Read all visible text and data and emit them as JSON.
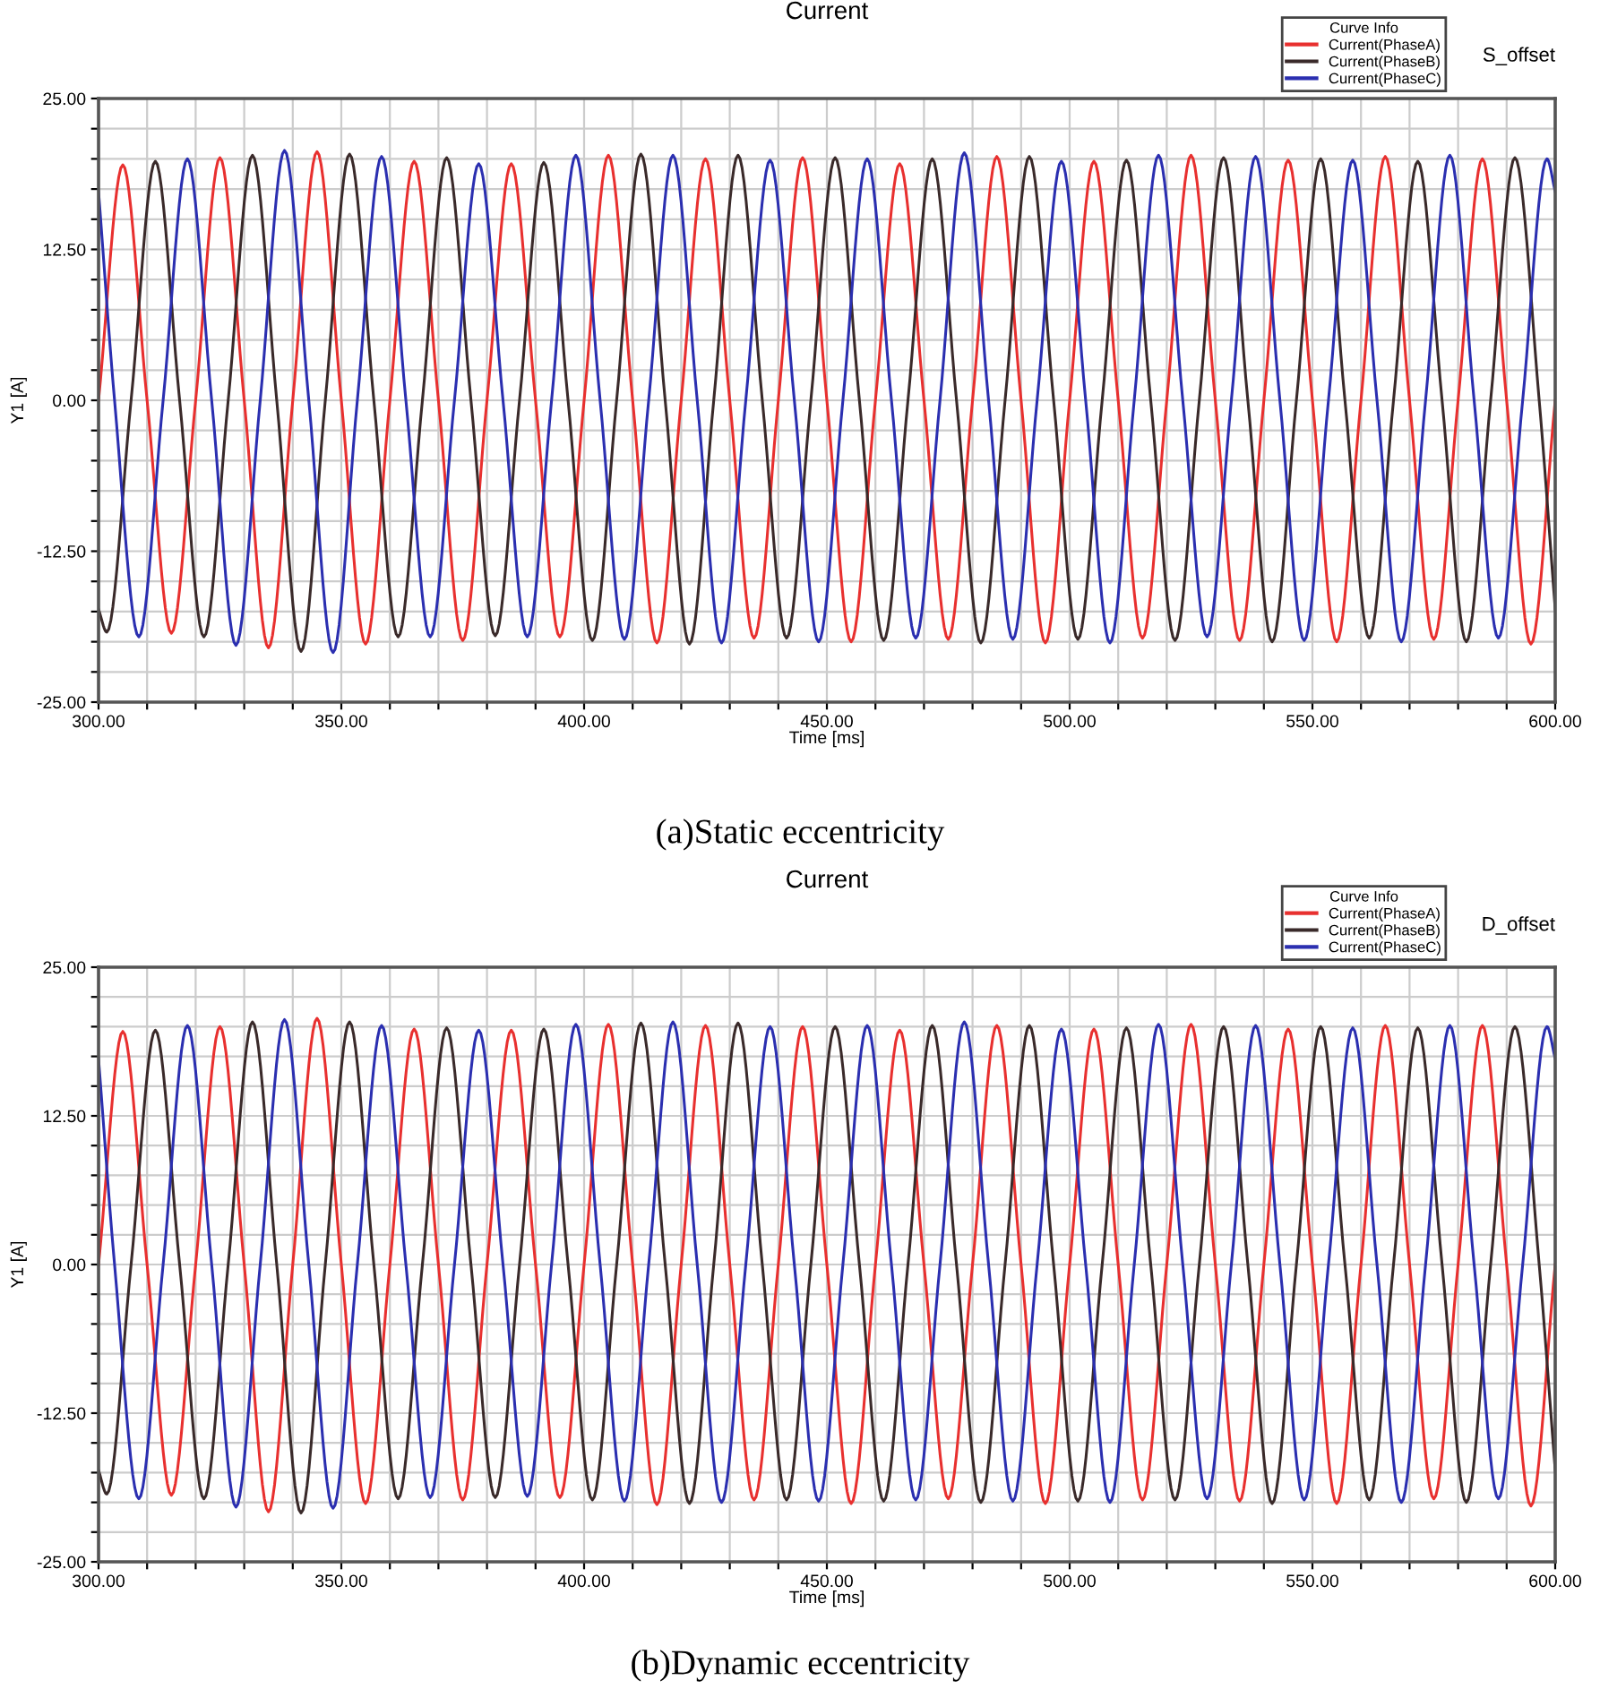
{
  "chart_data": [
    {
      "type": "line",
      "title": "Current",
      "xlabel": "Time [ms]",
      "ylabel": "Y1 [A]",
      "legend_title": "Curve Info",
      "annotations": [
        "S_offset",
        "(a)Static eccentricity"
      ],
      "series": [
        {
          "name": "Current(PhaseA)",
          "color": "#e8302f",
          "x": [
            300,
            305,
            310,
            315,
            320,
            325,
            330,
            335,
            340,
            345,
            350,
            355,
            360,
            365,
            370,
            375,
            380,
            385,
            390,
            395,
            400,
            405,
            410,
            415,
            420,
            425,
            430,
            435,
            440,
            445,
            450,
            455,
            460,
            465,
            470,
            475,
            480,
            485,
            490,
            495,
            500,
            505,
            510,
            515,
            520,
            525,
            530,
            535,
            540,
            545,
            550,
            555,
            560,
            565,
            570,
            575,
            580,
            585,
            590,
            595,
            600
          ],
          "values": [
            0,
            19.5,
            0,
            -19.3,
            0,
            20.1,
            0,
            -20.5,
            0,
            20.6,
            0,
            -20.2,
            0,
            19.8,
            0,
            -19.9,
            0,
            19.6,
            0,
            -19.6,
            0,
            20.3,
            0,
            -20.1,
            0,
            20.0,
            0,
            -19.7,
            0,
            20.1,
            0,
            -20.0,
            0,
            19.6,
            0,
            -19.8,
            0,
            20.2,
            0,
            -20.1,
            0,
            19.8,
            0,
            -19.7,
            0,
            20.3,
            0,
            -19.9,
            0,
            19.9,
            0,
            -20.0,
            0,
            20.2,
            0,
            -19.8,
            0,
            20.0,
            0,
            -20.2,
            0
          ]
        },
        {
          "name": "Current(PhaseB)",
          "color": "#3a2a2a",
          "x": [
            300,
            301.7,
            306.7,
            311.7,
            316.7,
            321.7,
            326.7,
            331.7,
            336.7,
            341.7,
            346.7,
            351.7,
            356.7,
            361.7,
            366.7,
            371.7,
            376.7,
            381.7,
            386.7,
            391.7,
            396.7,
            401.7,
            406.7,
            411.7,
            416.7,
            421.7,
            426.7,
            431.7,
            436.7,
            441.7,
            446.7,
            451.7,
            456.7,
            461.7,
            466.7,
            471.7,
            476.7,
            481.7,
            486.7,
            491.7,
            496.7,
            501.7,
            506.7,
            511.7,
            516.7,
            521.7,
            526.7,
            531.7,
            536.7,
            541.7,
            546.7,
            551.7,
            556.7,
            561.7,
            566.7,
            571.7,
            576.7,
            581.7,
            586.7,
            591.7,
            596.7,
            600
          ],
          "values": [
            -17.3,
            -19.2,
            0,
            19.8,
            0,
            -19.6,
            0,
            20.3,
            0,
            -20.8,
            0,
            20.4,
            0,
            -19.6,
            0,
            20.1,
            0,
            -19.5,
            0,
            19.7,
            0,
            -19.9,
            0,
            20.4,
            0,
            -20.2,
            0,
            20.3,
            0,
            -19.7,
            0,
            20.1,
            0,
            -19.9,
            0,
            20.0,
            0,
            -20.1,
            0,
            20.2,
            0,
            -19.8,
            0,
            19.9,
            0,
            -19.9,
            0,
            20.1,
            0,
            -20.0,
            0,
            20.0,
            0,
            -19.7,
            0,
            19.8,
            0,
            -20.0,
            0,
            20.1,
            0,
            -17.3
          ]
        },
        {
          "name": "Current(PhaseC)",
          "color": "#2b2fb0",
          "x": [
            300,
            303.3,
            308.3,
            313.3,
            318.3,
            323.3,
            328.3,
            333.3,
            338.3,
            343.3,
            348.3,
            353.3,
            358.3,
            363.3,
            368.3,
            373.3,
            378.3,
            383.3,
            388.3,
            393.3,
            398.3,
            403.3,
            408.3,
            413.3,
            418.3,
            423.3,
            428.3,
            433.3,
            438.3,
            443.3,
            448.3,
            453.3,
            458.3,
            463.3,
            468.3,
            473.3,
            478.3,
            483.3,
            488.3,
            493.3,
            498.3,
            503.3,
            508.3,
            513.3,
            518.3,
            523.3,
            528.3,
            533.3,
            538.3,
            543.3,
            548.3,
            553.3,
            558.3,
            563.3,
            568.3,
            573.3,
            578.3,
            583.3,
            588.3,
            593.3,
            598.3,
            600
          ],
          "values": [
            17.3,
            0,
            -19.6,
            0,
            20.0,
            0,
            -20.3,
            0,
            20.7,
            0,
            -20.9,
            0,
            20.2,
            0,
            -19.6,
            0,
            19.6,
            0,
            -19.6,
            0,
            20.3,
            0,
            -19.8,
            0,
            20.3,
            0,
            -20.1,
            0,
            19.9,
            0,
            -20.0,
            0,
            20.0,
            0,
            -19.7,
            0,
            20.5,
            0,
            -19.8,
            0,
            19.8,
            0,
            -20.1,
            0,
            20.3,
            0,
            -19.6,
            0,
            20.2,
            0,
            -19.9,
            0,
            19.9,
            0,
            -20.0,
            0,
            20.3,
            0,
            -19.7,
            0,
            20.0,
            17.3
          ]
        }
      ],
      "xlim": [
        300,
        600
      ],
      "ylim": [
        -25,
        25
      ],
      "xticks": [
        {
          "value": 300,
          "label": "300.00"
        },
        {
          "value": 310,
          "label": null
        },
        {
          "value": 320,
          "label": null
        },
        {
          "value": 330,
          "label": null
        },
        {
          "value": 340,
          "label": null
        },
        {
          "value": 350,
          "label": "350.00"
        },
        {
          "value": 360,
          "label": null
        },
        {
          "value": 370,
          "label": null
        },
        {
          "value": 380,
          "label": null
        },
        {
          "value": 390,
          "label": null
        },
        {
          "value": 400,
          "label": "400.00"
        },
        {
          "value": 410,
          "label": null
        },
        {
          "value": 420,
          "label": null
        },
        {
          "value": 430,
          "label": null
        },
        {
          "value": 440,
          "label": null
        },
        {
          "value": 450,
          "label": "450.00"
        },
        {
          "value": 460,
          "label": null
        },
        {
          "value": 470,
          "label": null
        },
        {
          "value": 480,
          "label": null
        },
        {
          "value": 490,
          "label": null
        },
        {
          "value": 500,
          "label": "500.00"
        },
        {
          "value": 510,
          "label": null
        },
        {
          "value": 520,
          "label": null
        },
        {
          "value": 530,
          "label": null
        },
        {
          "value": 540,
          "label": null
        },
        {
          "value": 550,
          "label": "550.00"
        },
        {
          "value": 560,
          "label": null
        },
        {
          "value": 570,
          "label": null
        },
        {
          "value": 580,
          "label": null
        },
        {
          "value": 590,
          "label": null
        },
        {
          "value": 600,
          "label": "600.00"
        }
      ],
      "yticks": [
        {
          "value": -25,
          "label": "-25.00"
        },
        {
          "value": -22.5,
          "label": null
        },
        {
          "value": -20,
          "label": null
        },
        {
          "value": -17.5,
          "label": null
        },
        {
          "value": -15,
          "label": null
        },
        {
          "value": -12.5,
          "label": "-12.50"
        },
        {
          "value": -10,
          "label": null
        },
        {
          "value": -7.5,
          "label": null
        },
        {
          "value": -5,
          "label": null
        },
        {
          "value": -2.5,
          "label": null
        },
        {
          "value": 0,
          "label": "0.00"
        },
        {
          "value": 2.5,
          "label": null
        },
        {
          "value": 5,
          "label": null
        },
        {
          "value": 7.5,
          "label": null
        },
        {
          "value": 10,
          "label": null
        },
        {
          "value": 12.5,
          "label": "12.50"
        },
        {
          "value": 15,
          "label": null
        },
        {
          "value": 17.5,
          "label": null
        },
        {
          "value": 20,
          "label": null
        },
        {
          "value": 22.5,
          "label": null
        },
        {
          "value": 25,
          "label": "25.00"
        }
      ],
      "grid": true,
      "legend": "top right"
    },
    {
      "type": "line",
      "title": "Current",
      "xlabel": "Time [ms]",
      "ylabel": "Y1 [A]",
      "legend_title": "Curve Info",
      "annotations": [
        "D_offset",
        "(b)Dynamic eccentricity"
      ],
      "series": [
        {
          "name": "Current(PhaseA)",
          "color": "#e8302f",
          "x": [
            300,
            305,
            310,
            315,
            320,
            325,
            330,
            335,
            340,
            345,
            350,
            355,
            360,
            365,
            370,
            375,
            380,
            385,
            390,
            395,
            400,
            405,
            410,
            415,
            420,
            425,
            430,
            435,
            440,
            445,
            450,
            455,
            460,
            465,
            470,
            475,
            480,
            485,
            490,
            495,
            500,
            505,
            510,
            515,
            520,
            525,
            530,
            535,
            540,
            545,
            550,
            555,
            560,
            565,
            570,
            575,
            580,
            585,
            590,
            595,
            600
          ],
          "values": [
            0,
            19.6,
            0,
            -19.4,
            0,
            20.0,
            0,
            -20.8,
            0,
            20.7,
            0,
            -20.1,
            0,
            19.8,
            0,
            -19.8,
            0,
            19.7,
            0,
            -19.6,
            0,
            20.2,
            0,
            -20.2,
            0,
            20.1,
            0,
            -19.8,
            0,
            20.0,
            0,
            -20.1,
            0,
            19.7,
            0,
            -19.7,
            0,
            20.1,
            0,
            -20.1,
            0,
            19.8,
            0,
            -19.8,
            0,
            20.2,
            0,
            -19.9,
            0,
            19.8,
            0,
            -20.1,
            0,
            20.1,
            0,
            -19.7,
            0,
            20.1,
            0,
            -20.3,
            0
          ]
        },
        {
          "name": "Current(PhaseB)",
          "color": "#3a2a2a",
          "x": [
            300,
            301.7,
            306.7,
            311.7,
            316.7,
            321.7,
            326.7,
            331.7,
            336.7,
            341.7,
            346.7,
            351.7,
            356.7,
            361.7,
            366.7,
            371.7,
            376.7,
            381.7,
            386.7,
            391.7,
            396.7,
            401.7,
            406.7,
            411.7,
            416.7,
            421.7,
            426.7,
            431.7,
            436.7,
            441.7,
            446.7,
            451.7,
            456.7,
            461.7,
            466.7,
            471.7,
            476.7,
            481.7,
            486.7,
            491.7,
            496.7,
            501.7,
            506.7,
            511.7,
            516.7,
            521.7,
            526.7,
            531.7,
            536.7,
            541.7,
            546.7,
            551.7,
            556.7,
            561.7,
            566.7,
            571.7,
            576.7,
            581.7,
            586.7,
            591.7,
            596.7,
            600
          ],
          "values": [
            -17.3,
            -19.3,
            0,
            19.7,
            0,
            -19.7,
            0,
            20.4,
            0,
            -20.9,
            0,
            20.4,
            0,
            -19.7,
            0,
            19.9,
            0,
            -19.6,
            0,
            19.8,
            0,
            -19.8,
            0,
            20.3,
            0,
            -20.1,
            0,
            20.3,
            0,
            -19.8,
            0,
            20.0,
            0,
            -19.9,
            0,
            20.1,
            0,
            -20.0,
            0,
            20.1,
            0,
            -19.9,
            0,
            19.9,
            0,
            -19.8,
            0,
            20.0,
            0,
            -20.1,
            0,
            20.0,
            0,
            -19.8,
            0,
            19.9,
            0,
            -20.0,
            0,
            20.0,
            0,
            -17.3
          ]
        },
        {
          "name": "Current(PhaseC)",
          "color": "#2b2fb0",
          "x": [
            300,
            303.3,
            308.3,
            313.3,
            318.3,
            323.3,
            328.3,
            333.3,
            338.3,
            343.3,
            348.3,
            353.3,
            358.3,
            363.3,
            368.3,
            373.3,
            378.3,
            383.3,
            388.3,
            393.3,
            398.3,
            403.3,
            408.3,
            413.3,
            418.3,
            423.3,
            428.3,
            433.3,
            438.3,
            443.3,
            448.3,
            453.3,
            458.3,
            463.3,
            468.3,
            473.3,
            478.3,
            483.3,
            488.3,
            493.3,
            498.3,
            503.3,
            508.3,
            513.3,
            518.3,
            523.3,
            528.3,
            533.3,
            538.3,
            543.3,
            548.3,
            553.3,
            558.3,
            563.3,
            568.3,
            573.3,
            578.3,
            583.3,
            588.3,
            593.3,
            598.3,
            600
          ],
          "values": [
            17.3,
            0,
            -19.7,
            0,
            20.1,
            0,
            -20.4,
            0,
            20.6,
            0,
            -20.5,
            0,
            20.1,
            0,
            -19.6,
            0,
            19.7,
            0,
            -19.5,
            0,
            20.2,
            0,
            -19.9,
            0,
            20.4,
            0,
            -20.0,
            0,
            20.0,
            0,
            -19.9,
            0,
            20.1,
            0,
            -19.8,
            0,
            20.4,
            0,
            -19.9,
            0,
            19.8,
            0,
            -20.0,
            0,
            20.2,
            0,
            -19.7,
            0,
            20.1,
            0,
            -19.8,
            0,
            19.9,
            0,
            -20.0,
            0,
            20.1,
            0,
            -19.7,
            0,
            20.0,
            17.3
          ]
        }
      ],
      "xlim": [
        300,
        600
      ],
      "ylim": [
        -25,
        25
      ],
      "xticks": [
        {
          "value": 300,
          "label": "300.00"
        },
        {
          "value": 310,
          "label": null
        },
        {
          "value": 320,
          "label": null
        },
        {
          "value": 330,
          "label": null
        },
        {
          "value": 340,
          "label": null
        },
        {
          "value": 350,
          "label": "350.00"
        },
        {
          "value": 360,
          "label": null
        },
        {
          "value": 370,
          "label": null
        },
        {
          "value": 380,
          "label": null
        },
        {
          "value": 390,
          "label": null
        },
        {
          "value": 400,
          "label": "400.00"
        },
        {
          "value": 410,
          "label": null
        },
        {
          "value": 420,
          "label": null
        },
        {
          "value": 430,
          "label": null
        },
        {
          "value": 440,
          "label": null
        },
        {
          "value": 450,
          "label": "450.00"
        },
        {
          "value": 460,
          "label": null
        },
        {
          "value": 470,
          "label": null
        },
        {
          "value": 480,
          "label": null
        },
        {
          "value": 490,
          "label": null
        },
        {
          "value": 500,
          "label": "500.00"
        },
        {
          "value": 510,
          "label": null
        },
        {
          "value": 520,
          "label": null
        },
        {
          "value": 530,
          "label": null
        },
        {
          "value": 540,
          "label": null
        },
        {
          "value": 550,
          "label": "550.00"
        },
        {
          "value": 560,
          "label": null
        },
        {
          "value": 570,
          "label": null
        },
        {
          "value": 580,
          "label": null
        },
        {
          "value": 590,
          "label": null
        },
        {
          "value": 600,
          "label": "600.00"
        }
      ],
      "yticks": [
        {
          "value": -25,
          "label": "-25.00"
        },
        {
          "value": -22.5,
          "label": null
        },
        {
          "value": -20,
          "label": null
        },
        {
          "value": -17.5,
          "label": null
        },
        {
          "value": -15,
          "label": null
        },
        {
          "value": -12.5,
          "label": "-12.50"
        },
        {
          "value": -10,
          "label": null
        },
        {
          "value": -7.5,
          "label": null
        },
        {
          "value": -5,
          "label": null
        },
        {
          "value": -2.5,
          "label": null
        },
        {
          "value": 0,
          "label": "0.00"
        },
        {
          "value": 2.5,
          "label": null
        },
        {
          "value": 5,
          "label": null
        },
        {
          "value": 7.5,
          "label": null
        },
        {
          "value": 10,
          "label": null
        },
        {
          "value": 12.5,
          "label": "12.50"
        },
        {
          "value": 15,
          "label": null
        },
        {
          "value": 17.5,
          "label": null
        },
        {
          "value": 20,
          "label": null
        },
        {
          "value": 22.5,
          "label": null
        },
        {
          "value": 25,
          "label": "25.00"
        }
      ],
      "grid": true,
      "legend": "top right"
    }
  ]
}
